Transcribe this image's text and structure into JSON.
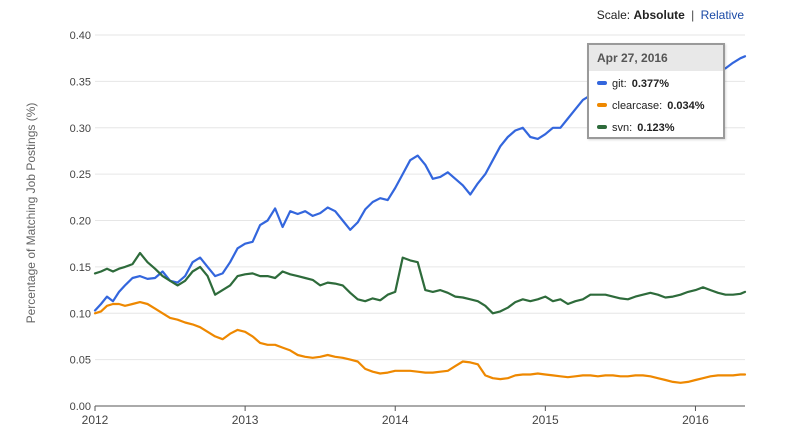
{
  "scale": {
    "label": "Scale:",
    "active": "Absolute",
    "separator": "|",
    "alternate": "Relative"
  },
  "tooltip": {
    "date": "Apr 27, 2016",
    "rows": [
      {
        "name": "git",
        "value": "0.377%",
        "color": "#3366dd"
      },
      {
        "name": "clearcase",
        "value": "0.034%",
        "color": "#ee8800"
      },
      {
        "name": "svn",
        "value": "0.123%",
        "color": "#2e6b3b"
      }
    ]
  },
  "chart_data": {
    "type": "line",
    "title": "",
    "xlabel": "",
    "ylabel": "Percentage of Matching Job Postings (%)",
    "xlim": [
      2012.0,
      2016.33
    ],
    "ylim": [
      0,
      0.4
    ],
    "x_ticks": [
      "2012",
      "2013",
      "2014",
      "2015",
      "2016"
    ],
    "y_ticks": [
      "0.00",
      "0.05",
      "0.10",
      "0.15",
      "0.20",
      "0.25",
      "0.30",
      "0.35",
      "0.40"
    ],
    "grid": true,
    "x": [
      2012.0,
      2012.04,
      2012.08,
      2012.12,
      2012.16,
      2012.2,
      2012.25,
      2012.3,
      2012.35,
      2012.4,
      2012.45,
      2012.5,
      2012.55,
      2012.6,
      2012.65,
      2012.7,
      2012.75,
      2012.8,
      2012.85,
      2012.9,
      2012.95,
      2013.0,
      2013.05,
      2013.1,
      2013.15,
      2013.2,
      2013.25,
      2013.3,
      2013.35,
      2013.4,
      2013.45,
      2013.5,
      2013.55,
      2013.6,
      2013.65,
      2013.7,
      2013.75,
      2013.8,
      2013.85,
      2013.9,
      2013.95,
      2014.0,
      2014.05,
      2014.1,
      2014.15,
      2014.2,
      2014.25,
      2014.3,
      2014.35,
      2014.4,
      2014.45,
      2014.5,
      2014.55,
      2014.6,
      2014.65,
      2014.7,
      2014.75,
      2014.8,
      2014.85,
      2014.9,
      2014.95,
      2015.0,
      2015.05,
      2015.1,
      2015.15,
      2015.2,
      2015.25,
      2015.3,
      2015.35,
      2015.4,
      2015.45,
      2015.5,
      2015.55,
      2015.6,
      2015.65,
      2015.7,
      2015.75,
      2015.8,
      2015.85,
      2015.9,
      2015.95,
      2016.0,
      2016.05,
      2016.1,
      2016.15,
      2016.2,
      2016.25,
      2016.3,
      2016.33
    ],
    "series": [
      {
        "name": "git",
        "color": "#3366dd",
        "values": [
          0.103,
          0.11,
          0.118,
          0.113,
          0.123,
          0.13,
          0.138,
          0.14,
          0.137,
          0.138,
          0.145,
          0.135,
          0.133,
          0.14,
          0.155,
          0.16,
          0.15,
          0.14,
          0.143,
          0.155,
          0.17,
          0.175,
          0.177,
          0.195,
          0.2,
          0.213,
          0.193,
          0.21,
          0.207,
          0.21,
          0.205,
          0.208,
          0.214,
          0.21,
          0.2,
          0.19,
          0.198,
          0.212,
          0.22,
          0.224,
          0.222,
          0.235,
          0.25,
          0.265,
          0.27,
          0.26,
          0.245,
          0.247,
          0.252,
          0.245,
          0.238,
          0.228,
          0.24,
          0.25,
          0.265,
          0.28,
          0.29,
          0.297,
          0.3,
          0.29,
          0.288,
          0.293,
          0.3,
          0.3,
          0.31,
          0.32,
          0.33,
          0.335,
          0.34,
          0.348,
          0.35,
          0.365,
          0.37,
          0.377,
          0.377,
          0.375,
          0.37,
          0.368,
          0.37,
          0.375,
          0.368,
          0.365,
          0.367,
          0.37,
          0.365,
          0.364,
          0.37,
          0.375,
          0.377
        ]
      },
      {
        "name": "clearcase",
        "color": "#ee8800",
        "values": [
          0.1,
          0.102,
          0.108,
          0.11,
          0.11,
          0.108,
          0.11,
          0.112,
          0.11,
          0.105,
          0.1,
          0.095,
          0.093,
          0.09,
          0.088,
          0.085,
          0.08,
          0.075,
          0.072,
          0.078,
          0.082,
          0.08,
          0.075,
          0.068,
          0.066,
          0.066,
          0.063,
          0.06,
          0.055,
          0.053,
          0.052,
          0.053,
          0.055,
          0.053,
          0.052,
          0.05,
          0.048,
          0.04,
          0.037,
          0.035,
          0.036,
          0.038,
          0.038,
          0.038,
          0.037,
          0.036,
          0.036,
          0.037,
          0.038,
          0.043,
          0.048,
          0.047,
          0.045,
          0.033,
          0.03,
          0.029,
          0.03,
          0.033,
          0.034,
          0.034,
          0.035,
          0.034,
          0.033,
          0.032,
          0.031,
          0.032,
          0.033,
          0.033,
          0.032,
          0.033,
          0.033,
          0.032,
          0.032,
          0.033,
          0.033,
          0.032,
          0.03,
          0.028,
          0.026,
          0.025,
          0.026,
          0.028,
          0.03,
          0.032,
          0.033,
          0.033,
          0.033,
          0.034,
          0.034
        ]
      },
      {
        "name": "svn",
        "color": "#2e6b3b",
        "values": [
          0.143,
          0.145,
          0.148,
          0.145,
          0.148,
          0.15,
          0.153,
          0.165,
          0.155,
          0.148,
          0.14,
          0.135,
          0.13,
          0.135,
          0.145,
          0.15,
          0.14,
          0.12,
          0.125,
          0.13,
          0.14,
          0.142,
          0.143,
          0.14,
          0.14,
          0.138,
          0.145,
          0.142,
          0.14,
          0.138,
          0.136,
          0.13,
          0.133,
          0.132,
          0.13,
          0.122,
          0.115,
          0.113,
          0.116,
          0.114,
          0.12,
          0.123,
          0.16,
          0.157,
          0.155,
          0.125,
          0.123,
          0.125,
          0.122,
          0.118,
          0.117,
          0.115,
          0.113,
          0.108,
          0.1,
          0.102,
          0.106,
          0.112,
          0.115,
          0.113,
          0.115,
          0.118,
          0.113,
          0.115,
          0.11,
          0.113,
          0.115,
          0.12,
          0.12,
          0.12,
          0.118,
          0.116,
          0.115,
          0.118,
          0.12,
          0.122,
          0.12,
          0.117,
          0.118,
          0.12,
          0.123,
          0.125,
          0.128,
          0.125,
          0.122,
          0.12,
          0.12,
          0.121,
          0.123
        ]
      }
    ]
  }
}
